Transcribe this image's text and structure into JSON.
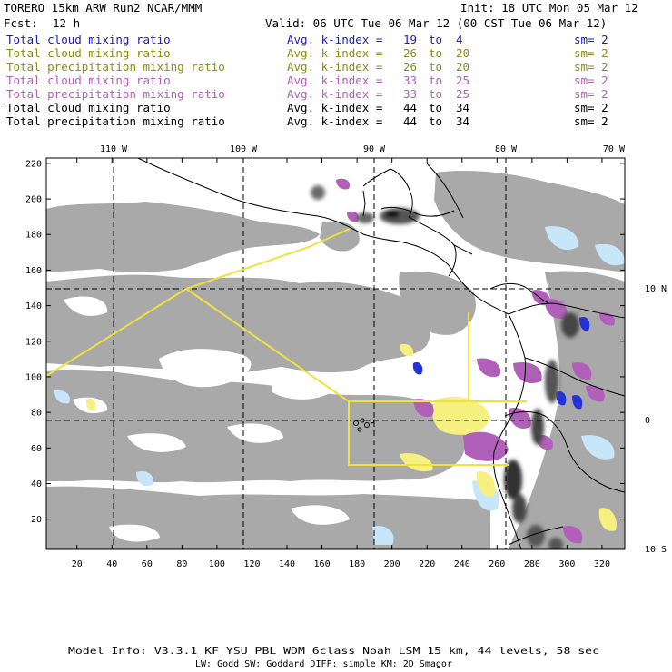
{
  "header": {
    "model": "TORERO  15km ARW   Run2    NCAR/MMM",
    "init": "Init: 18 UTC Mon 05 Mar 12",
    "fcst_label": "Fcst:",
    "fcst_value": "12 h",
    "valid": "Valid: 06 UTC Tue 06 Mar 12 (00 CST Tue 06 Mar 12)"
  },
  "legend": [
    {
      "field": "Total cloud mixing ratio",
      "stat": "Avg. k-index =",
      "from": "19",
      "to": "to",
      "end": "4",
      "sm": "sm= 2",
      "color": "#1a1acc"
    },
    {
      "field": "Total cloud mixing ratio",
      "stat": "Avg. k-index =",
      "from": "26",
      "to": "to",
      "end": "20",
      "sm": "sm= 2",
      "color": "#8c8c10"
    },
    {
      "field": "Total precipitation mixing ratio",
      "stat": "Avg. k-index =",
      "from": "26",
      "to": "to",
      "end": "20",
      "sm": "sm= 2",
      "color": "#8c8c10"
    },
    {
      "field": "Total cloud mixing ratio",
      "stat": "Avg. k-index =",
      "from": "33",
      "to": "to",
      "end": "25",
      "sm": "sm= 2",
      "color": "#b160b8"
    },
    {
      "field": "Total precipitation mixing ratio",
      "stat": "Avg. k-index =",
      "from": "33",
      "to": "to",
      "end": "25",
      "sm": "sm= 2",
      "color": "#b160b8"
    },
    {
      "field": "Total cloud mixing ratio",
      "stat": "Avg. k-index =",
      "from": "44",
      "to": "to",
      "end": "34",
      "sm": "sm= 2",
      "color": "#000000"
    },
    {
      "field": "Total precipitation mixing ratio",
      "stat": "Avg. k-index =",
      "from": "44",
      "to": "to",
      "end": "34",
      "sm": "sm= 2",
      "color": "#000000"
    }
  ],
  "axes": {
    "top_lon": [
      "110 W",
      "100 W",
      "90 W",
      "80 W",
      "70 W"
    ],
    "right_lat": [
      "10 N",
      "0",
      "10 S"
    ],
    "left_y": [
      "220",
      "200",
      "180",
      "160",
      "140",
      "120",
      "100",
      "80",
      "60",
      "40",
      "20"
    ],
    "bottom_x": [
      "20",
      "40",
      "60",
      "80",
      "100",
      "120",
      "140",
      "160",
      "180",
      "200",
      "220",
      "240",
      "260",
      "280",
      "300",
      "320"
    ]
  },
  "footer": {
    "line1": "Model Info: V3.3.1   KF      YSU PBL  WDM 6class  Noah LSM  15 km,    44 levels,    58 sec",
    "line2": "LW: Godd SW: Goddard DIFF: simple KM: 2D Smagor"
  },
  "colors": {
    "cloud_gray": "#a9a9a9",
    "cloud_dark": "#6a6a6a",
    "light_blue": "#c8e6fa",
    "blue": "#2233dd",
    "yellow": "#f5f080",
    "magenta": "#b060b8",
    "domain_line": "#f0e040"
  }
}
